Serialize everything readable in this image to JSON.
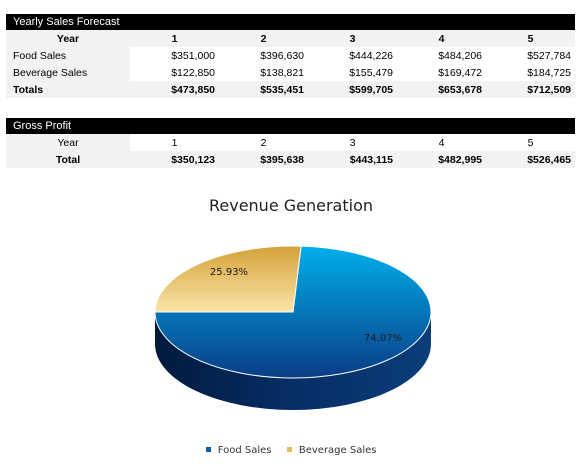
{
  "sales_forecast": {
    "header": "Yearly Sales Forecast",
    "year_label": "Year",
    "years": [
      "1",
      "2",
      "3",
      "4",
      "5"
    ],
    "rows": [
      {
        "label": "Food Sales",
        "values": [
          "$351,000",
          "$396,630",
          "$444,226",
          "$484,206",
          "$527,784"
        ]
      },
      {
        "label": "Beverage Sales",
        "values": [
          "$122,850",
          "$138,821",
          "$155,479",
          "$169,472",
          "$184,725"
        ]
      },
      {
        "label": "Totals",
        "values": [
          "$473,850",
          "$535,451",
          "$599,705",
          "$653,678",
          "$712,509"
        ]
      }
    ]
  },
  "gross_profit": {
    "header": "Gross Profit",
    "year_label": "Year",
    "years": [
      "1",
      "2",
      "3",
      "4",
      "5"
    ],
    "total_label": "Total",
    "totals": [
      "$350,123",
      "$395,638",
      "$443,115",
      "$482,995",
      "$526,465"
    ]
  },
  "chart_data": {
    "type": "pie",
    "title": "Revenue Generation",
    "categories": [
      "Food Sales",
      "Beverage Sales"
    ],
    "values": [
      74.07,
      25.93
    ],
    "data_labels": [
      "74.07%",
      "25.93%"
    ],
    "legend_position": "bottom",
    "colors": [
      "#0a5fb0",
      "#e2bd5c"
    ]
  }
}
